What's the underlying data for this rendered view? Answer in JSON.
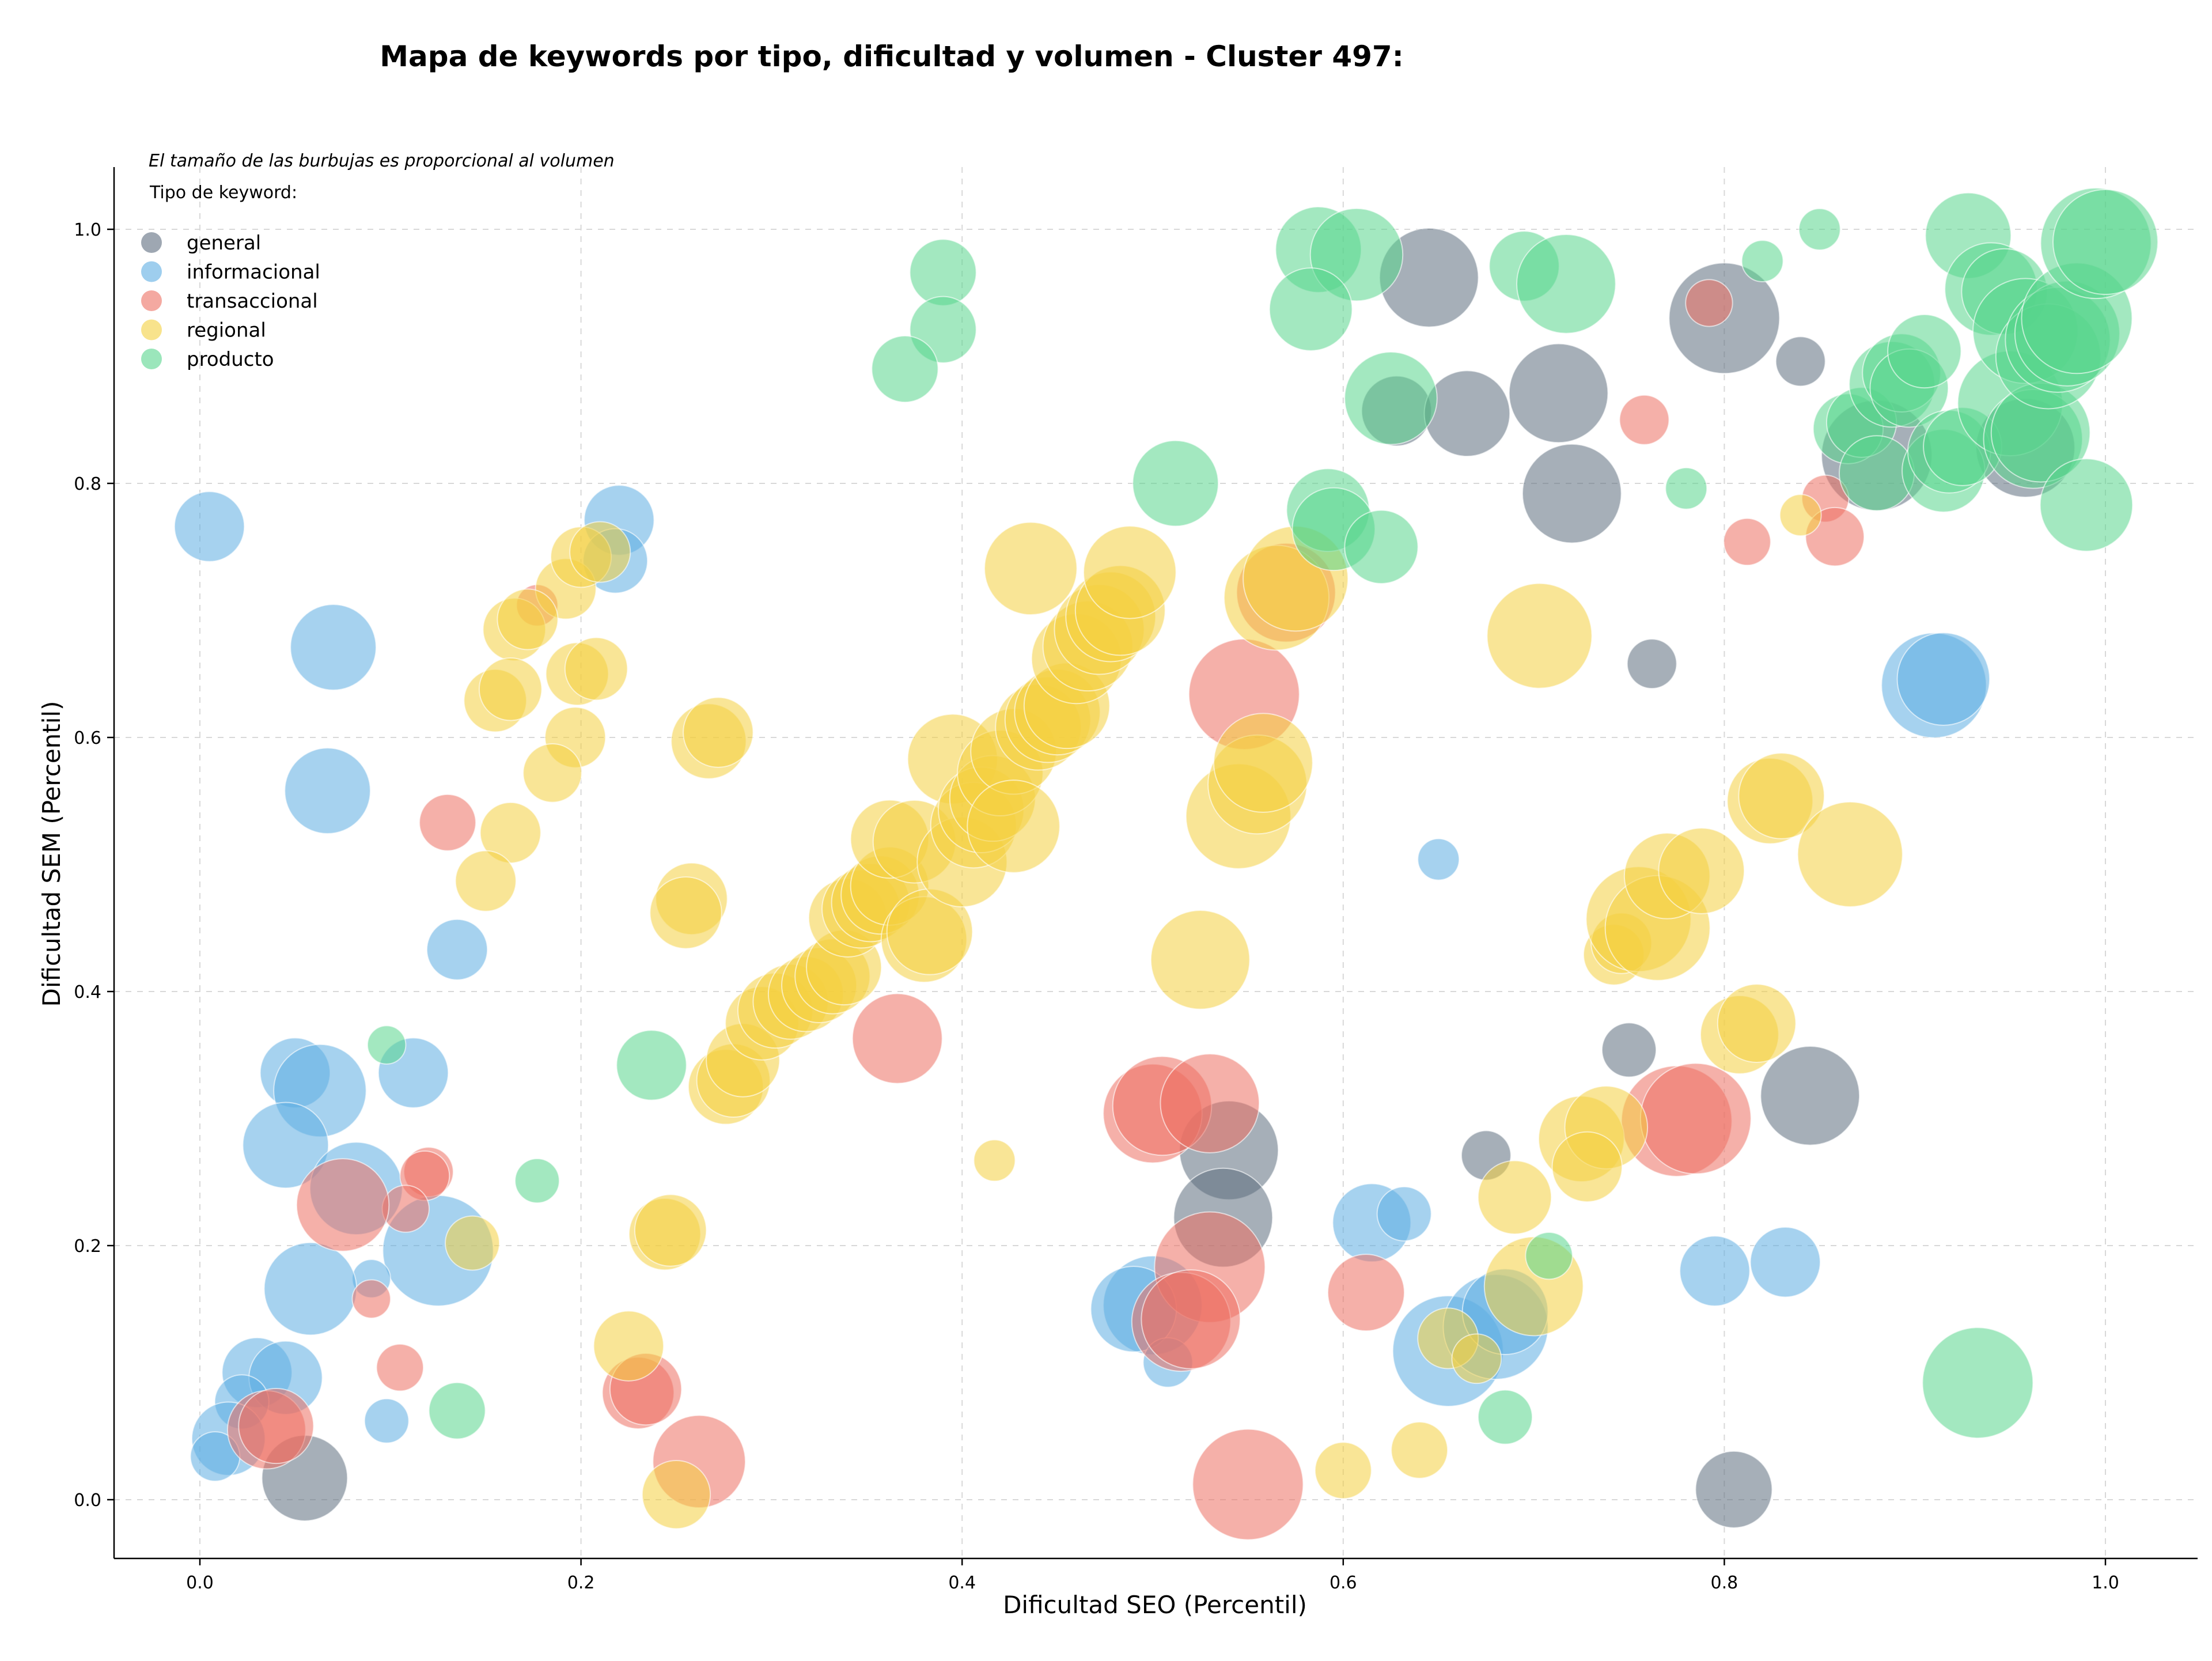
{
  "chart_data": {
    "type": "scatter",
    "title": "Mapa de keywords por tipo, dificultad y volumen - Cluster 497:",
    "xlabel": "Dificultad SEO (Percentil)",
    "ylabel": "Dificultad SEM (Percentil)",
    "xlim": [
      -0.045,
      1.05
    ],
    "ylim": [
      -0.045,
      1.05
    ],
    "xticks": [
      0.0,
      0.2,
      0.4,
      0.6,
      0.8,
      1.0
    ],
    "yticks": [
      0.0,
      0.2,
      0.4,
      0.6,
      0.8,
      1.0
    ],
    "xtick_labels": [
      "0.0",
      "0.2",
      "0.4",
      "0.6",
      "0.8",
      "1.0"
    ],
    "ytick_labels": [
      "0.0",
      "0.2",
      "0.4",
      "0.6",
      "0.8",
      "1.0"
    ],
    "grid": true,
    "size_note": "El tamaño de las burbujas es proporcional al volumen",
    "legend_title": "Tipo de keyword:",
    "legend_position": "top-left",
    "series": [
      {
        "name": "general",
        "color": "#5d6d7e",
        "points": [
          [
            0.055,
            0.017,
            3
          ],
          [
            0.54,
            0.275,
            4
          ],
          [
            0.537,
            0.222,
            4
          ],
          [
            0.645,
            0.962,
            4
          ],
          [
            0.628,
            0.857,
            2
          ],
          [
            0.665,
            0.855,
            3
          ],
          [
            0.713,
            0.871,
            4
          ],
          [
            0.72,
            0.792,
            4
          ],
          [
            0.8,
            0.93,
            5
          ],
          [
            0.84,
            0.896,
            1
          ],
          [
            0.762,
            0.658,
            1
          ],
          [
            0.75,
            0.354,
            1.2
          ],
          [
            0.675,
            0.271,
            1
          ],
          [
            0.845,
            0.318,
            4
          ],
          [
            0.805,
            0.008,
            2.4
          ],
          [
            0.88,
            0.822,
            5
          ],
          [
            0.958,
            0.828,
            4
          ]
        ]
      },
      {
        "name": "informacional",
        "color": "#5dade2",
        "points": [
          [
            0.005,
            0.766,
            2
          ],
          [
            0.07,
            0.671,
            3
          ],
          [
            0.067,
            0.558,
            3
          ],
          [
            0.22,
            0.771,
            2
          ],
          [
            0.218,
            0.739,
            1.7
          ],
          [
            0.135,
            0.433,
            1.5
          ],
          [
            0.05,
            0.336,
            2
          ],
          [
            0.063,
            0.322,
            3.5
          ],
          [
            0.112,
            0.336,
            2
          ],
          [
            0.045,
            0.279,
            3
          ],
          [
            0.082,
            0.245,
            3.5
          ],
          [
            0.125,
            0.196,
            5
          ],
          [
            0.09,
            0.174,
            0.6
          ],
          [
            0.058,
            0.166,
            3.5
          ],
          [
            0.03,
            0.1,
            2
          ],
          [
            0.045,
            0.096,
            2.2
          ],
          [
            0.022,
            0.077,
            1.2
          ],
          [
            0.015,
            0.048,
            2.2
          ],
          [
            0.008,
            0.034,
            1
          ],
          [
            0.098,
            0.062,
            0.8
          ],
          [
            0.5,
            0.153,
            4
          ],
          [
            0.49,
            0.15,
            3
          ],
          [
            0.508,
            0.108,
            1
          ],
          [
            0.615,
            0.218,
            2.5
          ],
          [
            0.632,
            0.225,
            1.2
          ],
          [
            0.655,
            0.117,
            5
          ],
          [
            0.68,
            0.136,
            4.5
          ],
          [
            0.685,
            0.148,
            3
          ],
          [
            0.65,
            0.504,
            0.7
          ],
          [
            0.795,
            0.18,
            2
          ],
          [
            0.832,
            0.187,
            2
          ],
          [
            0.91,
            0.641,
            4.5
          ],
          [
            0.915,
            0.646,
            3.5
          ]
        ]
      },
      {
        "name": "transaccional",
        "color": "#ec7063",
        "points": [
          [
            0.13,
            0.533,
            1.3
          ],
          [
            0.177,
            0.704,
            0.7
          ],
          [
            0.12,
            0.258,
            1
          ],
          [
            0.118,
            0.255,
            1
          ],
          [
            0.108,
            0.229,
            0.9
          ],
          [
            0.075,
            0.232,
            3.5
          ],
          [
            0.09,
            0.158,
            0.6
          ],
          [
            0.105,
            0.104,
            0.9
          ],
          [
            0.035,
            0.055,
            2.5
          ],
          [
            0.04,
            0.058,
            2.3
          ],
          [
            0.23,
            0.084,
            2.1
          ],
          [
            0.234,
            0.087,
            2.1
          ],
          [
            0.262,
            0.03,
            3.5
          ],
          [
            0.366,
            0.363,
            3.3
          ],
          [
            0.548,
            0.634,
            5
          ],
          [
            0.5,
            0.304,
            4
          ],
          [
            0.505,
            0.31,
            4
          ],
          [
            0.53,
            0.312,
            4
          ],
          [
            0.53,
            0.183,
            5
          ],
          [
            0.515,
            0.14,
            4
          ],
          [
            0.52,
            0.142,
            4
          ],
          [
            0.55,
            0.012,
            5
          ],
          [
            0.612,
            0.163,
            2.4
          ],
          [
            0.57,
            0.714,
            4
          ],
          [
            0.775,
            0.298,
            5
          ],
          [
            0.785,
            0.3,
            5
          ],
          [
            0.758,
            0.85,
            1
          ],
          [
            0.812,
            0.754,
            0.9
          ],
          [
            0.853,
            0.788,
            0.9
          ],
          [
            0.858,
            0.758,
            1.4
          ],
          [
            0.792,
            0.942,
            0.9
          ]
        ]
      },
      {
        "name": "regional",
        "color": "#f4d03f",
        "points": [
          [
            0.192,
            0.717,
            1.5
          ],
          [
            0.2,
            0.742,
            1.5
          ],
          [
            0.21,
            0.746,
            1.5
          ],
          [
            0.165,
            0.685,
            1.6
          ],
          [
            0.172,
            0.693,
            1.5
          ],
          [
            0.155,
            0.629,
            1.6
          ],
          [
            0.163,
            0.638,
            1.6
          ],
          [
            0.198,
            0.65,
            1.6
          ],
          [
            0.208,
            0.654,
            1.6
          ],
          [
            0.197,
            0.6,
            1.5
          ],
          [
            0.185,
            0.572,
            1.4
          ],
          [
            0.163,
            0.525,
            1.5
          ],
          [
            0.15,
            0.487,
            1.5
          ],
          [
            0.143,
            0.202,
            1.2
          ],
          [
            0.267,
            0.597,
            2.3
          ],
          [
            0.272,
            0.604,
            2
          ],
          [
            0.258,
            0.473,
            2.1
          ],
          [
            0.255,
            0.462,
            2.1
          ],
          [
            0.244,
            0.209,
            2.1
          ],
          [
            0.247,
            0.212,
            2.1
          ],
          [
            0.225,
            0.121,
            2
          ],
          [
            0.25,
            0.004,
            1.9
          ],
          [
            0.276,
            0.325,
            2.3
          ],
          [
            0.28,
            0.33,
            2.2
          ],
          [
            0.285,
            0.346,
            2.2
          ],
          [
            0.295,
            0.375,
            2.2
          ],
          [
            0.302,
            0.385,
            2.3
          ],
          [
            0.31,
            0.392,
            2.3
          ],
          [
            0.318,
            0.398,
            2.3
          ],
          [
            0.325,
            0.405,
            2.3
          ],
          [
            0.332,
            0.412,
            2.3
          ],
          [
            0.338,
            0.419,
            2.3
          ],
          [
            0.34,
            0.458,
            2.5
          ],
          [
            0.347,
            0.465,
            2.5
          ],
          [
            0.352,
            0.47,
            2.5
          ],
          [
            0.357,
            0.476,
            2.5
          ],
          [
            0.362,
            0.483,
            2.5
          ],
          [
            0.362,
            0.52,
            2.5
          ],
          [
            0.375,
            0.518,
            2.8
          ],
          [
            0.38,
            0.441,
            3
          ],
          [
            0.383,
            0.447,
            3
          ],
          [
            0.395,
            0.583,
            3.3
          ],
          [
            0.4,
            0.502,
            3.3
          ],
          [
            0.406,
            0.531,
            3
          ],
          [
            0.41,
            0.543,
            3
          ],
          [
            0.416,
            0.552,
            3
          ],
          [
            0.42,
            0.572,
            3
          ],
          [
            0.427,
            0.589,
            3
          ],
          [
            0.427,
            0.53,
            3.5
          ],
          [
            0.436,
            0.733,
            3.5
          ],
          [
            0.417,
            0.267,
            0.7
          ],
          [
            0.44,
            0.608,
            3
          ],
          [
            0.445,
            0.614,
            3
          ],
          [
            0.45,
            0.62,
            3
          ],
          [
            0.455,
            0.625,
            3
          ],
          [
            0.46,
            0.662,
            3.3
          ],
          [
            0.466,
            0.672,
            3.3
          ],
          [
            0.472,
            0.685,
            3.3
          ],
          [
            0.478,
            0.695,
            3.3
          ],
          [
            0.483,
            0.7,
            3.3
          ],
          [
            0.488,
            0.73,
            3.5
          ],
          [
            0.545,
            0.538,
            4.5
          ],
          [
            0.555,
            0.563,
            4
          ],
          [
            0.558,
            0.58,
            4
          ],
          [
            0.525,
            0.425,
            4
          ],
          [
            0.565,
            0.71,
            4.5
          ],
          [
            0.575,
            0.725,
            4.5
          ],
          [
            0.6,
            0.023,
            1.3
          ],
          [
            0.64,
            0.039,
            1.3
          ],
          [
            0.655,
            0.127,
            1.5
          ],
          [
            0.67,
            0.111,
            1
          ],
          [
            0.69,
            0.238,
            2.2
          ],
          [
            0.7,
            0.168,
            4
          ],
          [
            0.703,
            0.68,
            4.5
          ],
          [
            0.725,
            0.284,
            3
          ],
          [
            0.738,
            0.293,
            2.8
          ],
          [
            0.728,
            0.262,
            2
          ],
          [
            0.742,
            0.429,
            1.5
          ],
          [
            0.746,
            0.438,
            1.5
          ],
          [
            0.755,
            0.457,
            4.5
          ],
          [
            0.765,
            0.45,
            4.5
          ],
          [
            0.77,
            0.491,
            3
          ],
          [
            0.788,
            0.495,
            3
          ],
          [
            0.808,
            0.366,
            2.5
          ],
          [
            0.817,
            0.375,
            2.5
          ],
          [
            0.824,
            0.55,
            3
          ],
          [
            0.83,
            0.554,
            3
          ],
          [
            0.866,
            0.508,
            4.5
          ],
          [
            0.84,
            0.775,
            0.7
          ]
        ]
      },
      {
        "name": "producto",
        "color": "#58d68d",
        "points": [
          [
            0.39,
            0.966,
            1.8
          ],
          [
            0.39,
            0.921,
            1.8
          ],
          [
            0.37,
            0.89,
            1.8
          ],
          [
            0.098,
            0.358,
            0.6
          ],
          [
            0.177,
            0.251,
            0.8
          ],
          [
            0.135,
            0.07,
            1.3
          ],
          [
            0.237,
            0.342,
            2
          ],
          [
            0.512,
            0.8,
            3
          ],
          [
            0.587,
            0.984,
            3
          ],
          [
            0.607,
            0.98,
            3.5
          ],
          [
            0.583,
            0.937,
            2.8
          ],
          [
            0.592,
            0.779,
            2.8
          ],
          [
            0.595,
            0.764,
            2.8
          ],
          [
            0.62,
            0.75,
            2.2
          ],
          [
            0.625,
            0.867,
            3.5
          ],
          [
            0.695,
            0.971,
            2
          ],
          [
            0.717,
            0.957,
            4
          ],
          [
            0.708,
            0.192,
            0.9
          ],
          [
            0.685,
            0.065,
            1.2
          ],
          [
            0.78,
            0.796,
            0.7
          ],
          [
            0.82,
            0.975,
            0.7
          ],
          [
            0.85,
            1.0,
            0.7
          ],
          [
            0.865,
            0.843,
            2
          ],
          [
            0.872,
            0.848,
            2
          ],
          [
            0.88,
            0.808,
            2.3
          ],
          [
            0.888,
            0.878,
            3
          ],
          [
            0.893,
            0.887,
            2.5
          ],
          [
            0.897,
            0.875,
            2.5
          ],
          [
            0.905,
            0.904,
            2.2
          ],
          [
            0.915,
            0.81,
            2.8
          ],
          [
            0.918,
            0.825,
            2.8
          ],
          [
            0.925,
            0.829,
            2.5
          ],
          [
            0.928,
            0.995,
            3
          ],
          [
            0.94,
            0.953,
            3.5
          ],
          [
            0.947,
            0.951,
            3
          ],
          [
            0.95,
            0.863,
            4.5
          ],
          [
            0.958,
            0.92,
            4.5
          ],
          [
            0.962,
            0.835,
            4
          ],
          [
            0.966,
            0.84,
            4
          ],
          [
            0.97,
            0.9,
            4.5
          ],
          [
            0.975,
            0.913,
            4.5
          ],
          [
            0.98,
            0.918,
            4.5
          ],
          [
            0.985,
            0.93,
            5
          ],
          [
            0.99,
            0.783,
            3.5
          ],
          [
            0.995,
            0.989,
            5
          ],
          [
            1.0,
            0.99,
            4.5
          ],
          [
            0.933,
            0.092,
            5
          ]
        ]
      }
    ]
  }
}
